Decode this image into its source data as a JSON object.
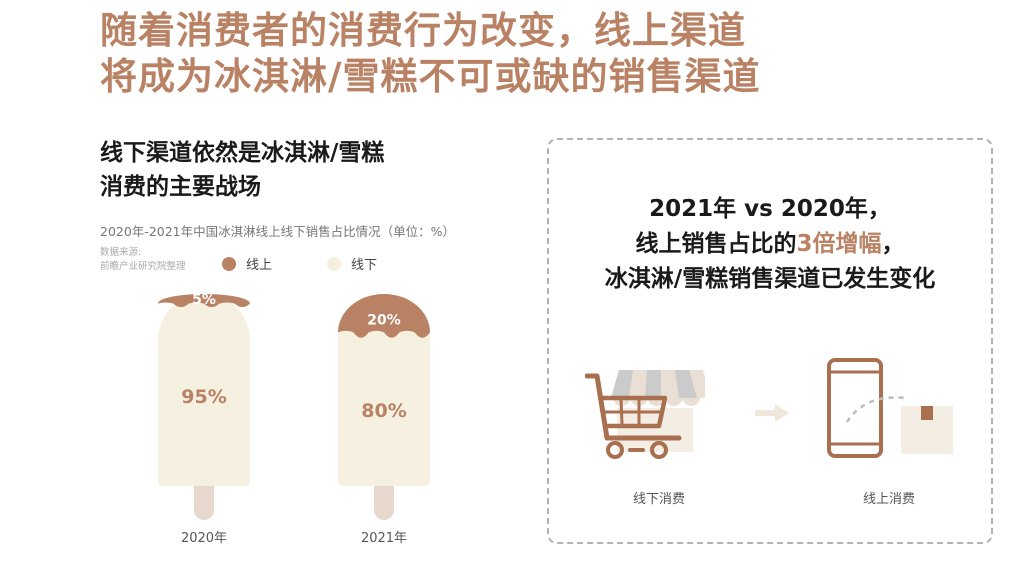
{
  "title": {
    "line1": "随着消费者的消费行为改变，线上渠道",
    "line2": "将成为冰淇淋/雪糕不可或缺的销售渠道"
  },
  "left": {
    "subtitle_line1": "线下渠道依然是冰淇淋/雪糕",
    "subtitle_line2": "消费的主要战场",
    "source_line1": "数据来源:",
    "source_line2": "前瞻产业研究院整理"
  },
  "chart_data": {
    "type": "bar",
    "stacked": true,
    "title": "2020年-2021年中国冰淇淋线上线下销售占比情况（单位：%）",
    "categories": [
      "2020年",
      "2021年"
    ],
    "series": [
      {
        "name": "线上",
        "values": [
          5,
          20
        ],
        "labels": [
          "5%",
          "20%"
        ]
      },
      {
        "name": "线下",
        "values": [
          95,
          80
        ],
        "labels": [
          "95%",
          "80%"
        ]
      }
    ],
    "ylim": [
      0,
      100
    ],
    "unit": "%",
    "legend_position": "top",
    "grid": false,
    "colors": {
      "online": "#b98264",
      "offline": "#f6f0e0",
      "stick": "#e6d8cd"
    }
  },
  "right": {
    "headline_line1": "2021年 vs 2020年，",
    "headline_line2_pre": "线上销售占比的",
    "headline_line2_hl": "3倍增幅",
    "headline_line2_post": "，",
    "headline_line3": "冰淇淋/雪糕销售渠道已发生变化",
    "offline_label": "线下消费",
    "online_label": "线上消费",
    "icons": [
      "shopping-cart-storefront-icon",
      "arrow-right-icon",
      "smartphone-package-icon"
    ]
  }
}
